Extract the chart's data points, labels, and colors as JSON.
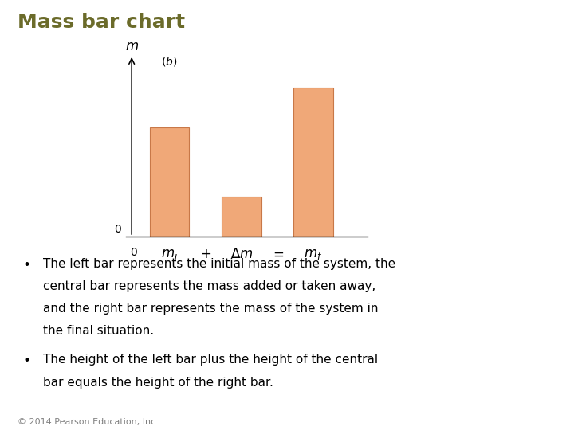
{
  "title": "Mass bar chart",
  "title_color": "#6b6b2a",
  "title_fontsize": 18,
  "bar_values": [
    3.0,
    1.1,
    4.1
  ],
  "bar_positions": [
    1,
    3,
    5
  ],
  "bar_width": 1.1,
  "bar_color": "#f0a878",
  "bar_edge_color": "#c87848",
  "ylim": [
    0,
    5.2
  ],
  "xlim": [
    -0.2,
    6.5
  ],
  "bg_color": "#ffffff",
  "bullet1_line1": "The left bar represents the initial mass of the system, the",
  "bullet1_line2": "central bar represents the mass added or taken away,",
  "bullet1_line3": "and the right bar represents the mass of the system in",
  "bullet1_line4": "the final situation.",
  "bullet2_line1": "The height of the left bar plus the height of the central",
  "bullet2_line2": "bar equals the height of the right bar.",
  "footer": "© 2014 Pearson Education, Inc.",
  "text_fontsize": 11,
  "footer_fontsize": 8
}
